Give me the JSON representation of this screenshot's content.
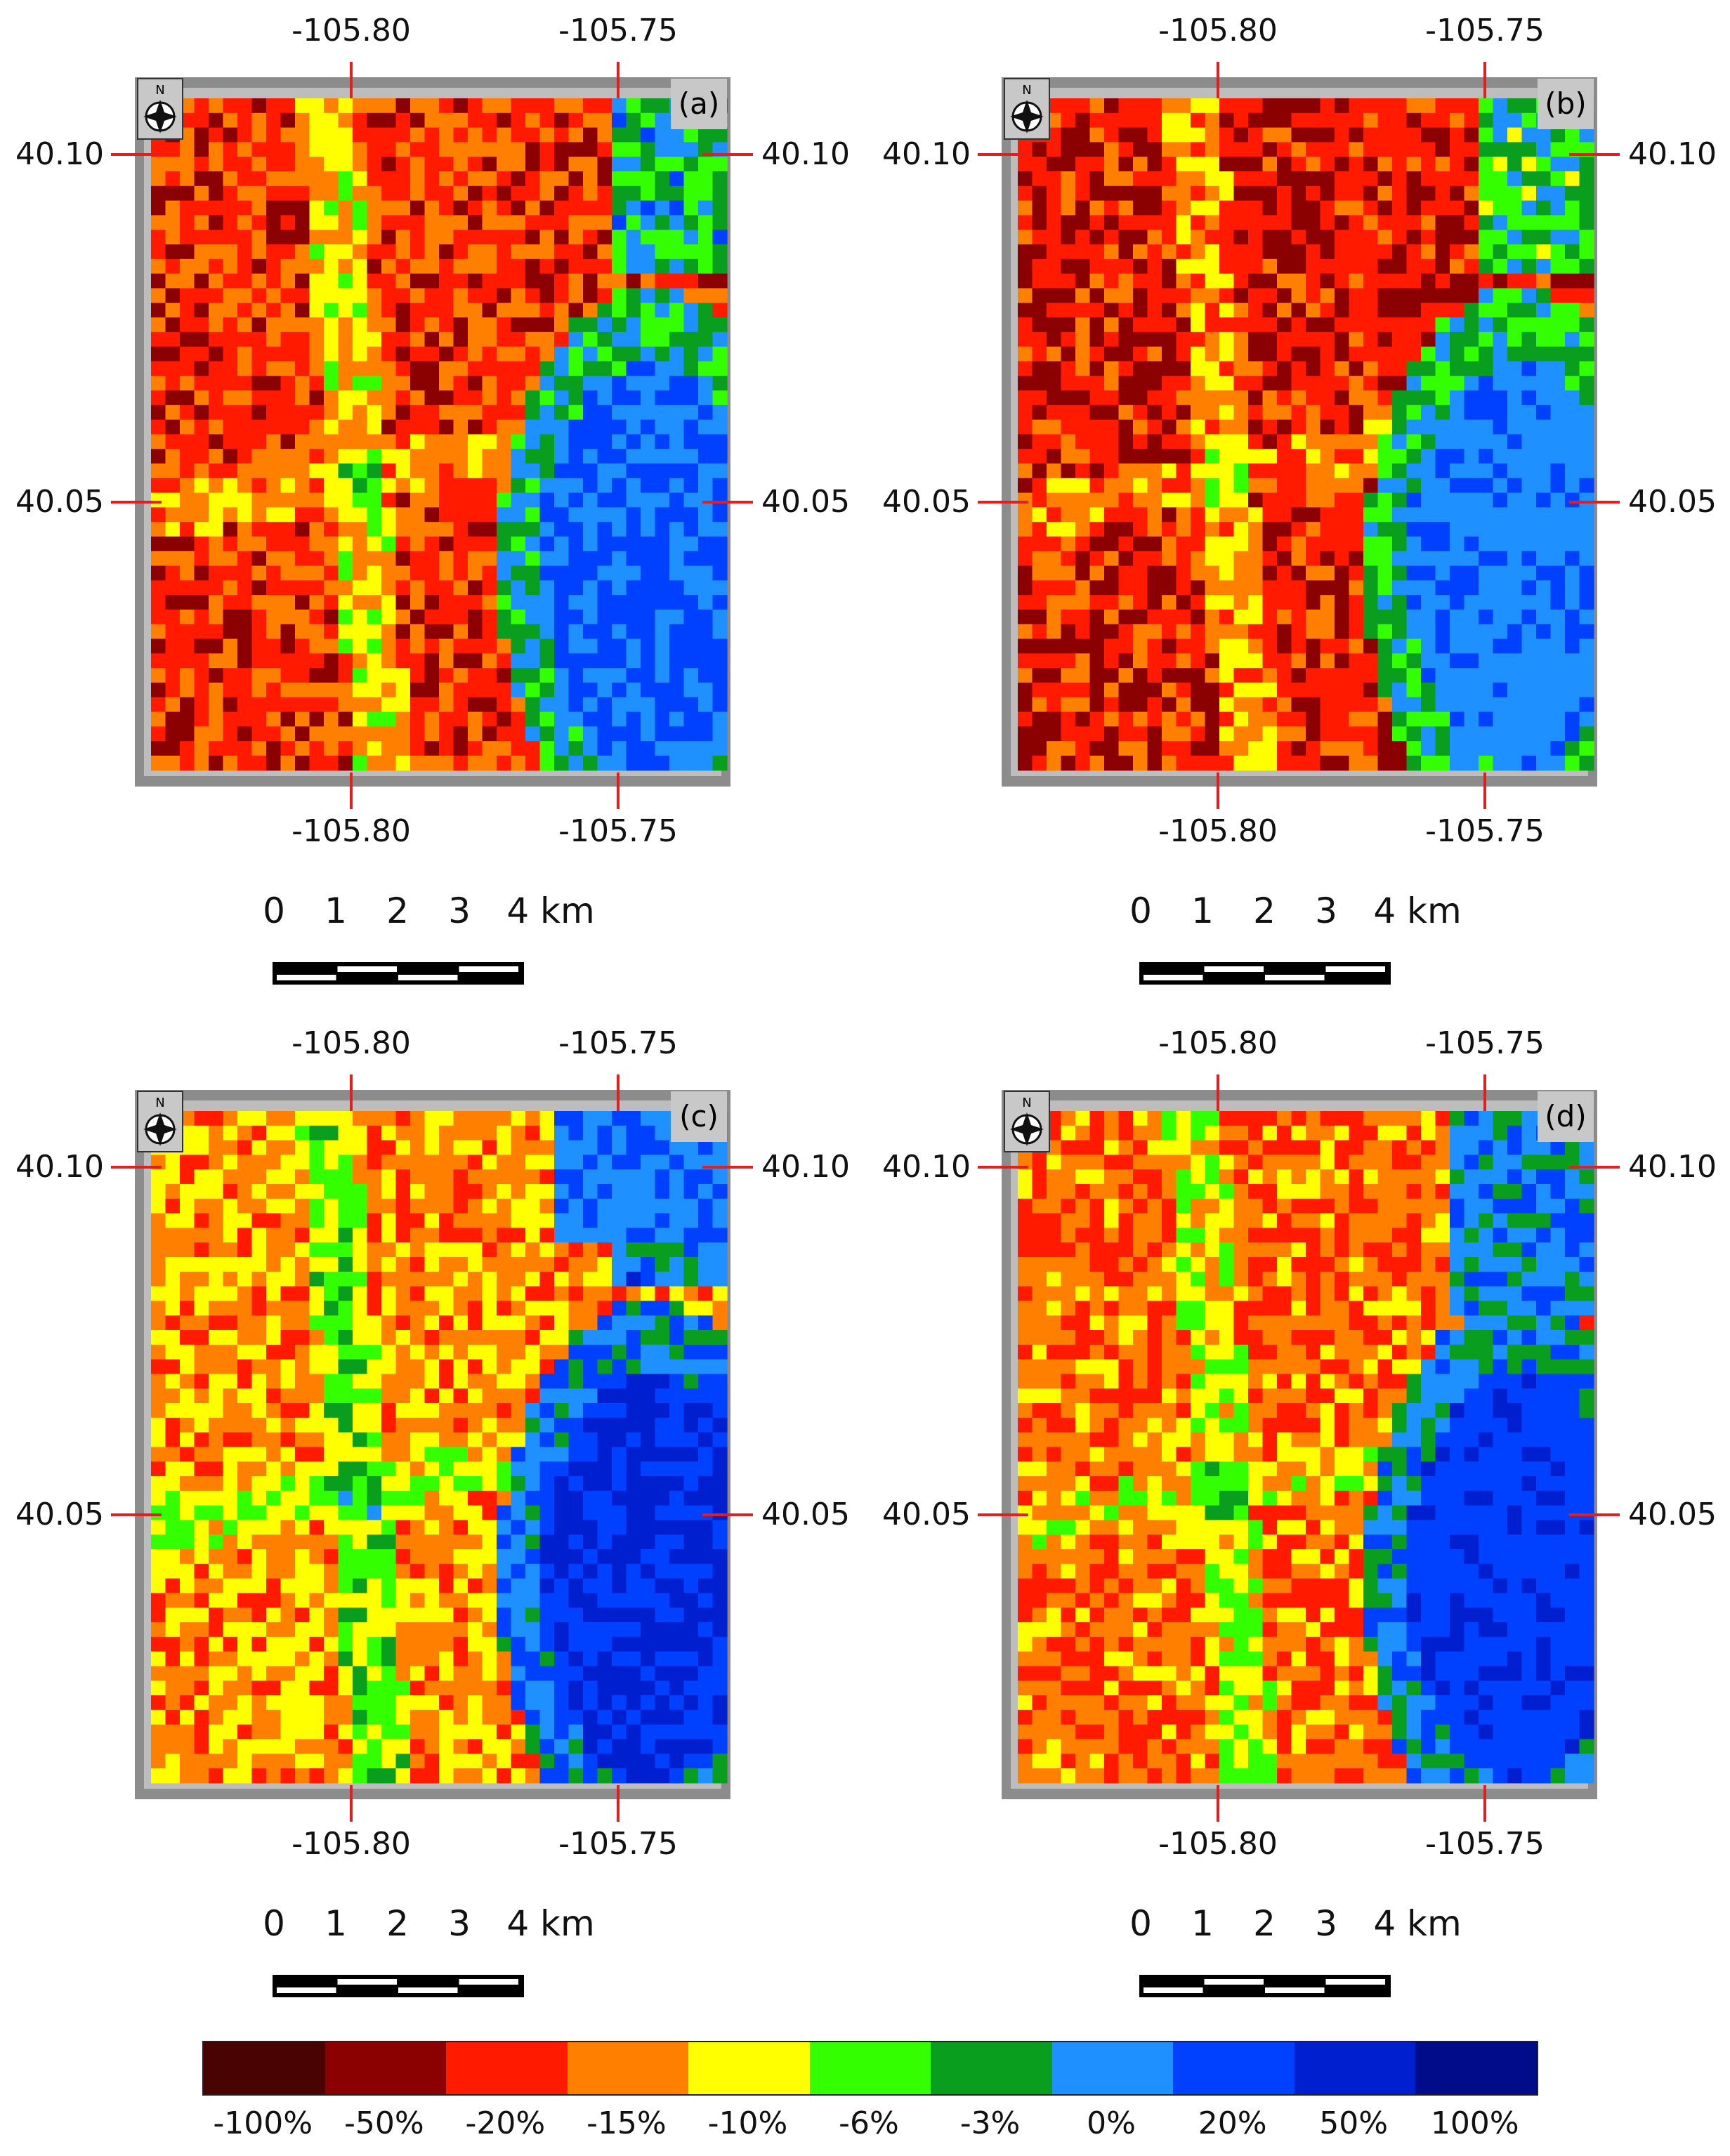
{
  "panels": [
    {
      "id": "a",
      "label": "(a)",
      "lon_labels": [
        "-105.80",
        "-105.75"
      ],
      "lat_labels": [
        "40.10",
        "40.05"
      ],
      "scale": [
        "0",
        "1",
        "2",
        "3",
        "4 km"
      ],
      "north": "N"
    },
    {
      "id": "b",
      "label": "(b)",
      "lon_labels": [
        "-105.80",
        "-105.75"
      ],
      "lat_labels": [
        "40.10",
        "40.05"
      ],
      "scale": [
        "0",
        "1",
        "2",
        "3",
        "4 km"
      ],
      "north": "N"
    },
    {
      "id": "c",
      "label": "(c)",
      "lon_labels": [
        "-105.80",
        "-105.75"
      ],
      "lat_labels": [
        "40.10",
        "40.05"
      ],
      "scale": [
        "0",
        "1",
        "2",
        "3",
        "4 km"
      ],
      "north": "N"
    },
    {
      "id": "d",
      "label": "(d)",
      "lon_labels": [
        "-105.80",
        "-105.75"
      ],
      "lat_labels": [
        "40.10",
        "40.05"
      ],
      "scale": [
        "0",
        "1",
        "2",
        "3",
        "4 km"
      ],
      "north": "N"
    }
  ],
  "legend": {
    "labels": [
      "-100%",
      "-50%",
      "-20%",
      "-15%",
      "-10%",
      "-6%",
      "-3%",
      "0%",
      "20%",
      "50%",
      "100%"
    ],
    "colors": [
      "#4a0303",
      "#8b0000",
      "#ff1a00",
      "#ff8000",
      "#ffff00",
      "#33ff00",
      "#0a9e1e",
      "#1e90ff",
      "#0040ff",
      "#0020d0",
      "#000c8a"
    ]
  }
}
